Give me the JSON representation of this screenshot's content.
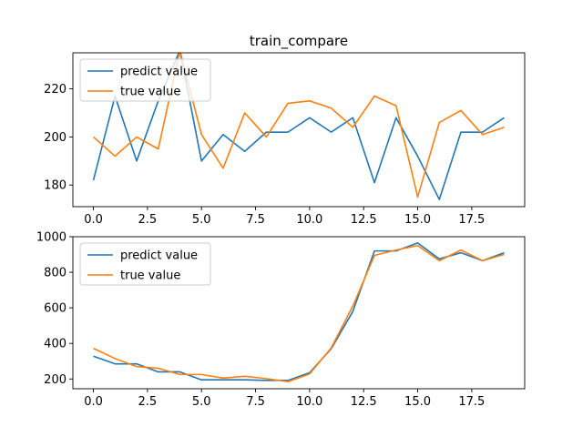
{
  "chart_data": [
    {
      "type": "line",
      "title": "train_compare",
      "xlabel": "",
      "ylabel": "",
      "xlim": [
        -0.95,
        19.95
      ],
      "ylim": [
        171,
        235
      ],
      "xticks": [
        0,
        2.5,
        5,
        7.5,
        10,
        12.5,
        15,
        17.5
      ],
      "xtick_labels": [
        "0.0",
        "2.5",
        "5.0",
        "7.5",
        "10.0",
        "12.5",
        "15.0",
        "17.5"
      ],
      "yticks": [
        180,
        200,
        220
      ],
      "ytick_labels": [
        "180",
        "200",
        "220"
      ],
      "grid": false,
      "legend_position": "upper-left",
      "x": [
        0,
        1,
        2,
        3,
        4,
        5,
        6,
        7,
        8,
        9,
        10,
        11,
        12,
        13,
        14,
        15,
        16,
        17,
        18,
        19
      ],
      "series": [
        {
          "name": "predict value",
          "color": "#1f77b4",
          "values": [
            182,
            217,
            190,
            215,
            236,
            190,
            201,
            194,
            202,
            202,
            208,
            202,
            208,
            181,
            208,
            192,
            174,
            202,
            202,
            208
          ]
        },
        {
          "name": "true value",
          "color": "#ff7f0e",
          "values": [
            200,
            192,
            200,
            195,
            236,
            201,
            187,
            210,
            200,
            214,
            215,
            212,
            204,
            217,
            213,
            175,
            206,
            211,
            201,
            204
          ]
        }
      ]
    },
    {
      "type": "line",
      "title": "",
      "xlabel": "",
      "ylabel": "",
      "xlim": [
        -0.95,
        19.95
      ],
      "ylim": [
        145,
        1000
      ],
      "xticks": [
        0,
        2.5,
        5,
        7.5,
        10,
        12.5,
        15,
        17.5
      ],
      "xtick_labels": [
        "0.0",
        "2.5",
        "5.0",
        "7.5",
        "10.0",
        "12.5",
        "15.0",
        "17.5"
      ],
      "yticks": [
        200,
        400,
        600,
        800,
        1000
      ],
      "ytick_labels": [
        "200",
        "400",
        "600",
        "800",
        "1000"
      ],
      "grid": false,
      "legend_position": "upper-left",
      "x": [
        0,
        1,
        2,
        3,
        4,
        5,
        6,
        7,
        8,
        9,
        10,
        11,
        12,
        13,
        14,
        15,
        16,
        17,
        18,
        19
      ],
      "series": [
        {
          "name": "predict value",
          "color": "#1f77b4",
          "values": [
            328,
            285,
            285,
            240,
            240,
            195,
            195,
            195,
            192,
            192,
            235,
            370,
            580,
            920,
            920,
            965,
            875,
            910,
            865,
            910
          ]
        },
        {
          "name": "true value",
          "color": "#ff7f0e",
          "values": [
            372,
            315,
            270,
            260,
            225,
            225,
            205,
            215,
            202,
            185,
            228,
            375,
            610,
            895,
            925,
            950,
            865,
            925,
            865,
            900
          ]
        }
      ]
    }
  ]
}
